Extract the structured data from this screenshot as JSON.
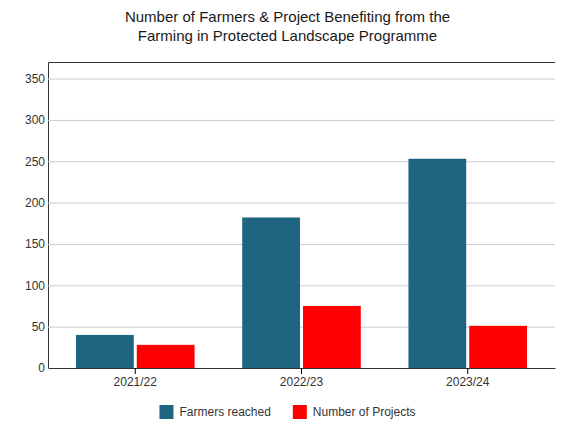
{
  "chart_data": {
    "type": "bar",
    "title": "Number of Farmers & Project Benefiting from the\nFarming in Protected Landscape Programme",
    "categories": [
      "2021/22",
      "2022/23",
      "2023/24"
    ],
    "series": [
      {
        "name": "Farmers reached",
        "color": "#1f6480",
        "values": [
          40,
          182,
          253
        ]
      },
      {
        "name": "Number of Projects",
        "color": "#ff0000",
        "values": [
          28,
          75,
          51
        ]
      }
    ],
    "ylim": [
      0,
      370
    ],
    "yticks": [
      0,
      50,
      100,
      150,
      200,
      250,
      300,
      350
    ],
    "grid": true,
    "legend": "bottom"
  }
}
